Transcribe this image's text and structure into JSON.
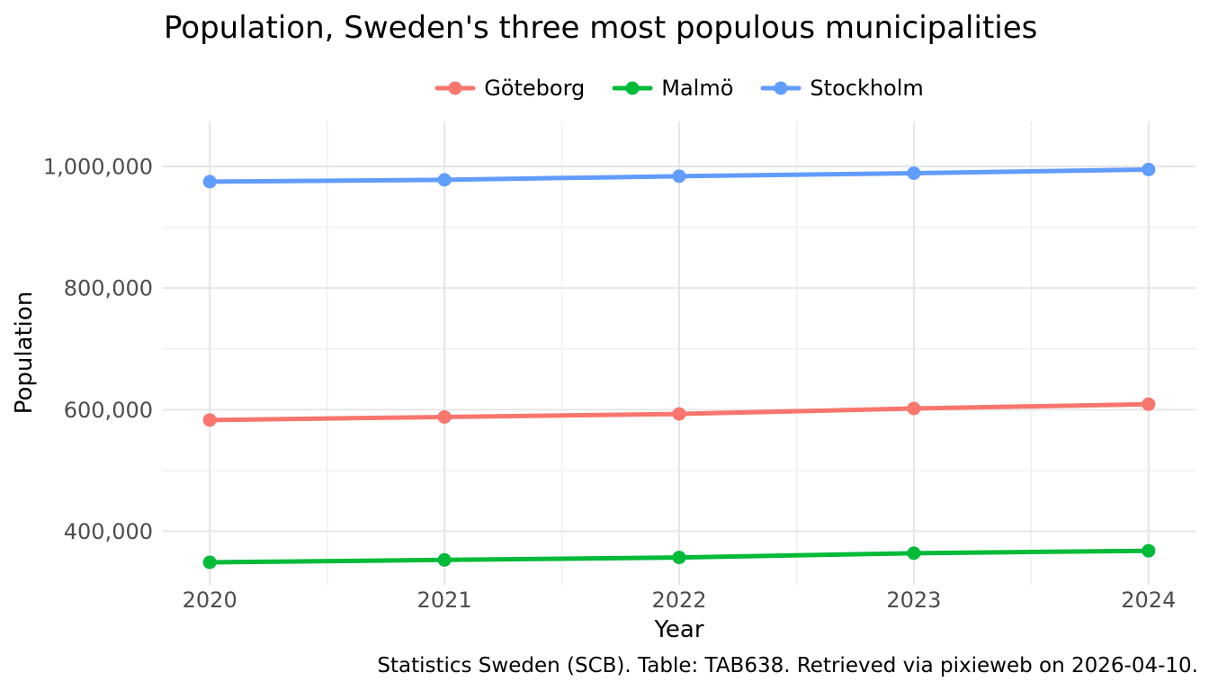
{
  "chart_data": {
    "type": "line",
    "title": "Population, Sweden's three most populous municipalities",
    "xlabel": "Year",
    "ylabel": "Population",
    "caption": "Statistics Sweden (SCB). Table: TAB638. Retrieved via pixieweb on 2026-04-10.",
    "x": [
      2020,
      2021,
      2022,
      2023,
      2024
    ],
    "series": [
      {
        "name": "Göteborg",
        "color": "#F8766D",
        "values": [
          583000,
          588000,
          593000,
          602000,
          609000
        ]
      },
      {
        "name": "Malmö",
        "color": "#00BA38",
        "values": [
          349000,
          353000,
          357000,
          364000,
          368000
        ]
      },
      {
        "name": "Stockholm",
        "color": "#619CFF",
        "values": [
          975000,
          978000,
          984000,
          989000,
          995000
        ]
      }
    ],
    "x_range": [
      2019.8,
      2024.2
    ],
    "y_range": [
      312000,
      1074000
    ],
    "x_ticks": [
      {
        "value": 2020,
        "label": "2020"
      },
      {
        "value": 2021,
        "label": "2021"
      },
      {
        "value": 2022,
        "label": "2022"
      },
      {
        "value": 2023,
        "label": "2023"
      },
      {
        "value": 2024,
        "label": "2024"
      }
    ],
    "y_ticks": [
      {
        "value": 400000,
        "label": "400,000"
      },
      {
        "value": 600000,
        "label": "600,000"
      },
      {
        "value": 800000,
        "label": "800,000"
      },
      {
        "value": 1000000,
        "label": "1,000,000"
      }
    ],
    "x_minor_ticks": [
      2020.5,
      2021.5,
      2022.5,
      2023.5
    ],
    "y_minor_ticks": [
      500000,
      700000,
      900000
    ],
    "grid": true,
    "legend_position": "top",
    "colors": {
      "background": "#FFFFFF",
      "grid_major": "#E6E6E6",
      "grid_minor": "#EFEFEF",
      "tick_label": "#4D4D4D",
      "text": "#000000"
    }
  }
}
